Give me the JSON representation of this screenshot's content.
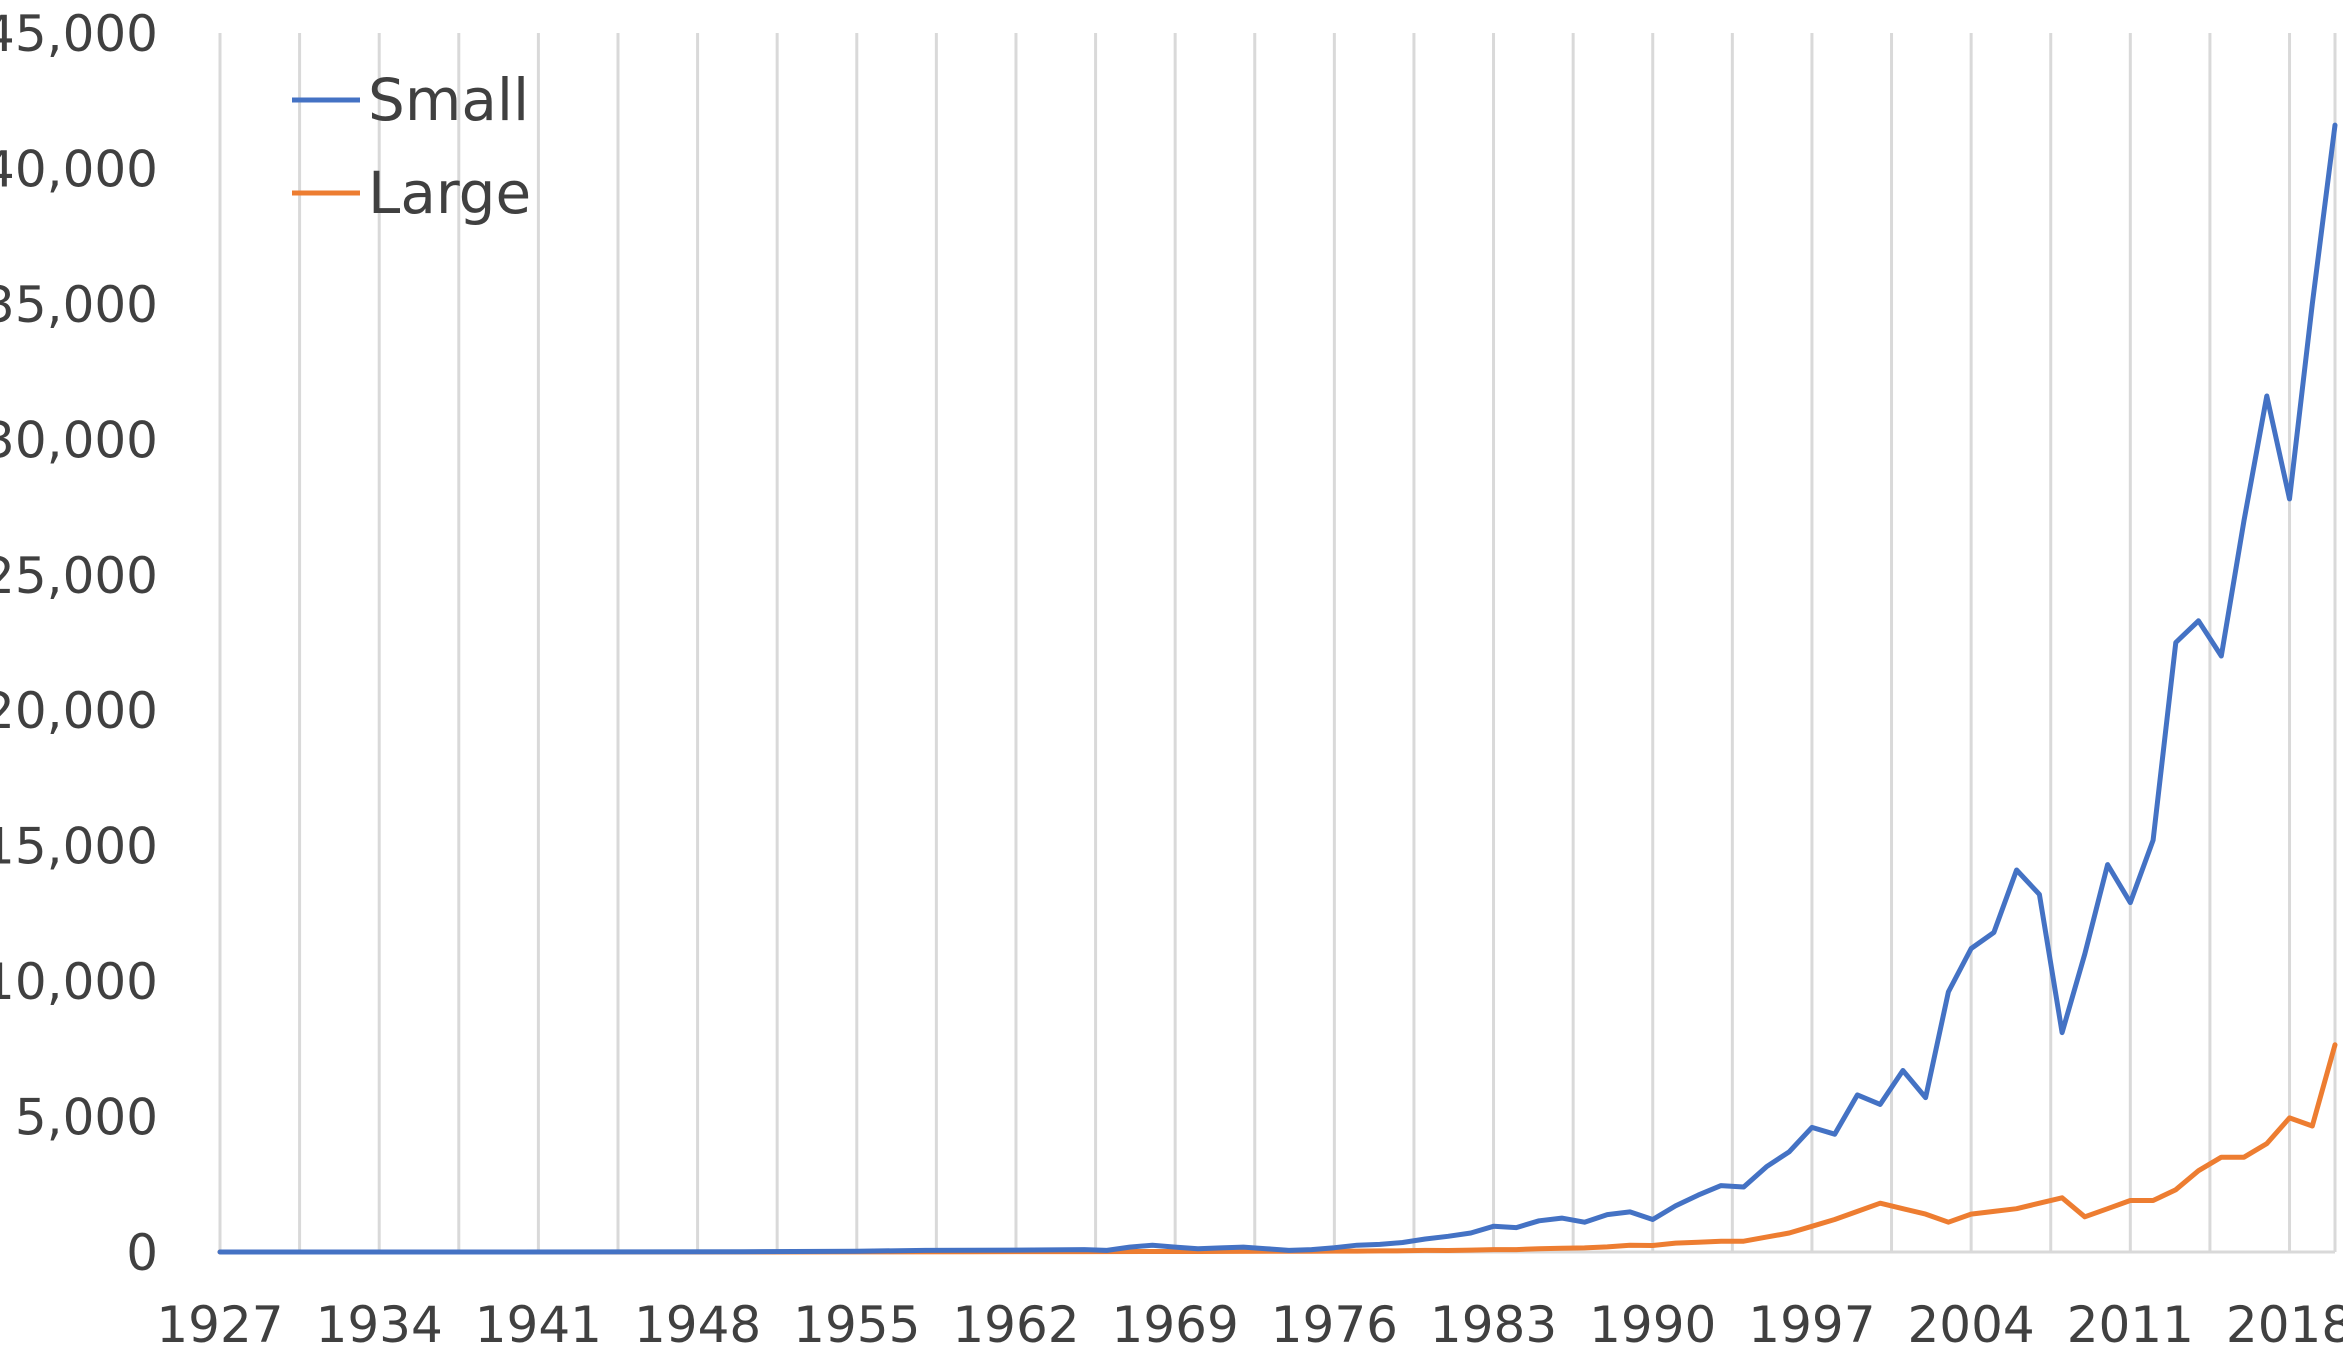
{
  "chart_data": {
    "type": "line",
    "title": "",
    "xlabel": "",
    "ylabel": "",
    "ylim": [
      0,
      45000
    ],
    "yticks": [
      0,
      5000,
      10000,
      15000,
      20000,
      25000,
      30000,
      35000,
      40000,
      45000
    ],
    "ytick_labels": [
      "0",
      "5,000",
      "10,000",
      "15,000",
      "20,000",
      "25,000",
      "30,000",
      "35,000",
      "40,000",
      "45,000"
    ],
    "xlim": [
      1927,
      2020
    ],
    "xticks": [
      1927,
      1934,
      1941,
      1948,
      1955,
      1962,
      1969,
      1976,
      1983,
      1990,
      1997,
      2004,
      2011,
      2018
    ],
    "xtick_labels": [
      "1927",
      "1934",
      "1941",
      "1948",
      "1955",
      "1962",
      "1969",
      "1976",
      "1983",
      "1990",
      "1997",
      "2004",
      "2011",
      "2018"
    ],
    "grid": "vertical",
    "legend": "top-left",
    "series": [
      {
        "name": "Small",
        "color": "#4472c4",
        "x": [
          1927,
          1930,
          1935,
          1940,
          1945,
          1950,
          1955,
          1958,
          1962,
          1965,
          1966,
          1967,
          1968,
          1969,
          1970,
          1971,
          1972,
          1973,
          1974,
          1975,
          1976,
          1977,
          1978,
          1979,
          1980,
          1981,
          1982,
          1983,
          1984,
          1985,
          1986,
          1987,
          1988,
          1989,
          1990,
          1991,
          1992,
          1993,
          1994,
          1995,
          1996,
          1997,
          1998,
          1999,
          2000,
          2001,
          2002,
          2003,
          2004,
          2005,
          2006,
          2007,
          2008,
          2009,
          2010,
          2011,
          2012,
          2013,
          2014,
          2015,
          2016,
          2017,
          2018,
          2019,
          2020
        ],
        "y": [
          0,
          0,
          0,
          0,
          5,
          10,
          30,
          60,
          70,
          90,
          60,
          180,
          250,
          180,
          120,
          150,
          180,
          120,
          60,
          90,
          160,
          250,
          280,
          350,
          480,
          580,
          700,
          950,
          900,
          1150,
          1250,
          1100,
          1380,
          1480,
          1200,
          1700,
          2100,
          2450,
          2400,
          3150,
          3700,
          4600,
          4350,
          5800,
          5450,
          6700,
          5700,
          9600,
          11200,
          11800,
          14100,
          13200,
          8100,
          11000,
          14300,
          12900,
          15200,
          22500,
          23300,
          22000,
          27000,
          31600,
          27800,
          35000,
          41600
        ]
      },
      {
        "name": "Large",
        "color": "#ed7d31",
        "x": [
          1927,
          1930,
          1935,
          1940,
          1945,
          1950,
          1955,
          1960,
          1965,
          1970,
          1975,
          1976,
          1977,
          1978,
          1979,
          1980,
          1981,
          1982,
          1983,
          1984,
          1985,
          1986,
          1987,
          1988,
          1989,
          1990,
          1991,
          1992,
          1993,
          1994,
          1995,
          1996,
          1997,
          1998,
          1999,
          2000,
          2001,
          2002,
          2003,
          2004,
          2005,
          2006,
          2007,
          2008,
          2009,
          2010,
          2011,
          2012,
          2013,
          2014,
          2015,
          2016,
          2017,
          2018,
          2019,
          2020
        ],
        "y": [
          0,
          0,
          0,
          0,
          0,
          0,
          5,
          10,
          15,
          20,
          30,
          35,
          35,
          40,
          45,
          60,
          55,
          70,
          90,
          90,
          120,
          140,
          150,
          190,
          250,
          240,
          330,
          360,
          400,
          400,
          550,
          700,
          950,
          1200,
          1500,
          1800,
          1600,
          1400,
          1100,
          1400,
          1500,
          1600,
          1800,
          2000,
          1300,
          1600,
          1900,
          1900,
          2300,
          3000,
          3500,
          3500,
          4000,
          4950,
          4650,
          7650
        ]
      }
    ]
  }
}
